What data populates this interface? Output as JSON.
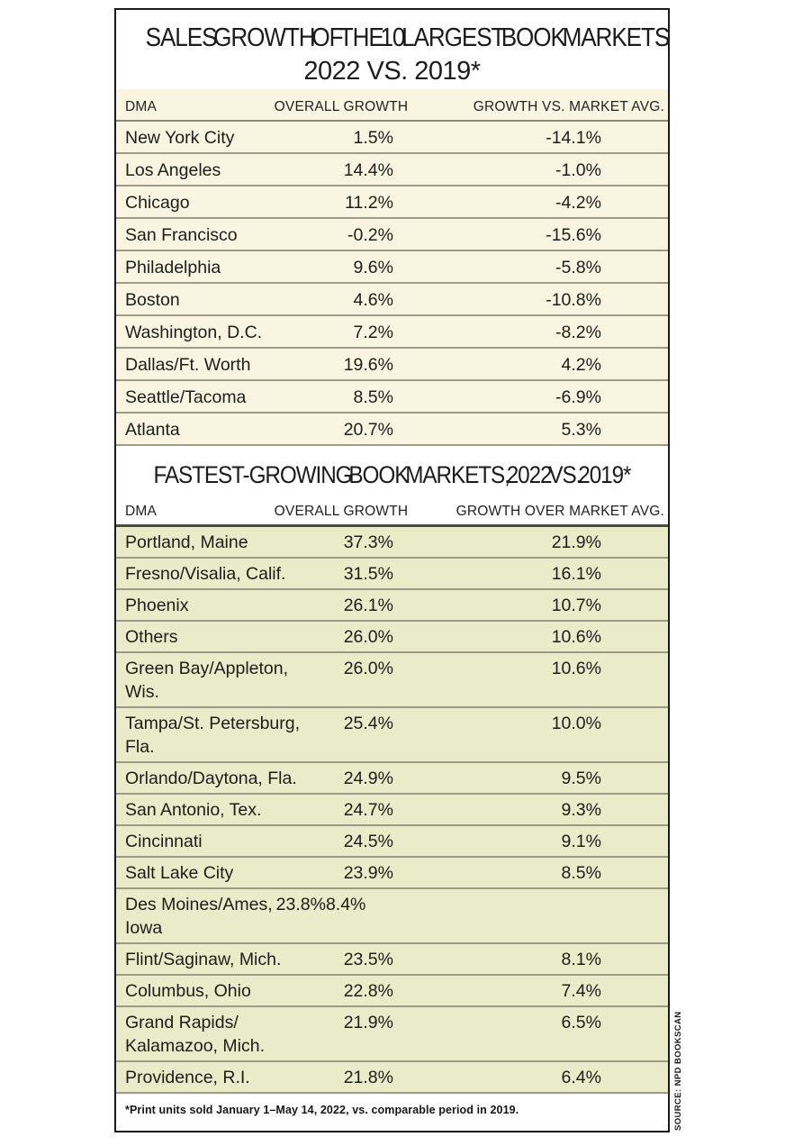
{
  "colors": {
    "table1_bg": "#f9f5e1",
    "table2_bg": "#e9ebc9",
    "row_divider": "#9c9b88",
    "table1_header_divider": "#8b8a7b",
    "table2_header_divider": "#4c4b40",
    "panel_border": "#1a1a1a",
    "text": "#1d1d1b"
  },
  "tables": [
    {
      "title_lines": [
        "SALES GROWTH OF THE 10 LARGEST BOOK MARKETS,",
        "2022 VS. 2019*"
      ],
      "columns": [
        "DMA",
        "OVERALL GROWTH",
        "GROWTH VS. MARKET AVG."
      ],
      "rows": [
        {
          "dma": "New York City",
          "overall": "1.5%",
          "vs": "-14.1%"
        },
        {
          "dma": "Los Angeles",
          "overall": "14.4%",
          "vs": "-1.0%"
        },
        {
          "dma": "Chicago",
          "overall": "11.2%",
          "vs": "-4.2%"
        },
        {
          "dma": "San Francisco",
          "overall": "-0.2%",
          "vs": "-15.6%"
        },
        {
          "dma": "Philadelphia",
          "overall": "9.6%",
          "vs": "-5.8%"
        },
        {
          "dma": "Boston",
          "overall": "4.6%",
          "vs": "-10.8%"
        },
        {
          "dma": "Washington, D.C.",
          "overall": "7.2%",
          "vs": "-8.2%"
        },
        {
          "dma": "Dallas/Ft. Worth",
          "overall": "19.6%",
          "vs": "4.2%"
        },
        {
          "dma": "Seattle/Tacoma",
          "overall": "8.5%",
          "vs": "-6.9%"
        },
        {
          "dma": "Atlanta",
          "overall": "20.7%",
          "vs": "5.3%"
        }
      ]
    },
    {
      "title": "FASTEST-GROWING BOOK MARKETS, 2022 VS. 2019*",
      "columns": [
        "DMA",
        "OVERALL GROWTH",
        "GROWTH OVER MARKET AVG."
      ],
      "rows": [
        {
          "dma": "Portland, Maine",
          "overall": "37.3%",
          "vs": "21.9%"
        },
        {
          "dma": "Fresno/Visalia, Calif.",
          "overall": "31.5%",
          "vs": "16.1%"
        },
        {
          "dma": "Phoenix",
          "overall": "26.1%",
          "vs": "10.7%"
        },
        {
          "dma": "Others",
          "overall": "26.0%",
          "vs": "10.6%"
        },
        {
          "dma": "Green Bay/Appleton, Wis.",
          "dma_display": "Green Bay/Appleton,\nWis.",
          "overall": "26.0%",
          "vs": "10.6%"
        },
        {
          "dma": "Tampa/St. Petersburg, Fla.",
          "dma_display": "Tampa/St. Petersburg,\nFla.",
          "overall": "25.4%",
          "vs": "10.0%"
        },
        {
          "dma": "Orlando/Daytona, Fla.",
          "overall": "24.9%",
          "vs": "9.5%"
        },
        {
          "dma": "San Antonio, Tex.",
          "overall": "24.7%",
          "vs": "9.3%"
        },
        {
          "dma": "Cincinnati",
          "overall": "24.5%",
          "vs": "9.1%"
        },
        {
          "dma": "Salt Lake City",
          "overall": "23.9%",
          "vs": "8.5%"
        },
        {
          "dma": "Des Moines/Ames, Iowa",
          "dma_display": "Des Moines/Ames,\nIowa",
          "overall": "23.8%",
          "vs": "8.4%",
          "collapsed": true
        },
        {
          "dma": "Flint/Saginaw, Mich.",
          "overall": "23.5%",
          "vs": "8.1%"
        },
        {
          "dma": "Columbus, Ohio",
          "overall": "22.8%",
          "vs": "7.4%"
        },
        {
          "dma": "Grand Rapids/Kalamazoo, Mich.",
          "dma_display": "Grand Rapids/\nKalamazoo, Mich.",
          "overall": "21.9%",
          "vs": "6.5%"
        },
        {
          "dma": "Providence, R.I.",
          "overall": "21.8%",
          "vs": "6.4%"
        }
      ]
    }
  ],
  "footnote": "*Print units sold January 1–May 14, 2022, vs. comparable period in 2019.",
  "source": "SOURCE: NPD BOOKSCAN",
  "chart_data": [
    {
      "type": "table",
      "title": "SALES GROWTH OF THE 10 LARGEST BOOK MARKETS, 2022 VS. 2019*",
      "columns": [
        "DMA",
        "OVERALL GROWTH",
        "GROWTH VS. MARKET AVG."
      ],
      "rows": [
        [
          "New York City",
          "1.5%",
          "-14.1%"
        ],
        [
          "Los Angeles",
          "14.4%",
          "-1.0%"
        ],
        [
          "Chicago",
          "11.2%",
          "-4.2%"
        ],
        [
          "San Francisco",
          "-0.2%",
          "-15.6%"
        ],
        [
          "Philadelphia",
          "9.6%",
          "-5.8%"
        ],
        [
          "Boston",
          "4.6%",
          "-10.8%"
        ],
        [
          "Washington, D.C.",
          "7.2%",
          "-8.2%"
        ],
        [
          "Dallas/Ft. Worth",
          "19.6%",
          "4.2%"
        ],
        [
          "Seattle/Tacoma",
          "8.5%",
          "-6.9%"
        ],
        [
          "Atlanta",
          "20.7%",
          "5.3%"
        ]
      ]
    },
    {
      "type": "table",
      "title": "FASTEST-GROWING BOOK MARKETS, 2022 VS. 2019*",
      "columns": [
        "DMA",
        "OVERALL GROWTH",
        "GROWTH OVER MARKET AVG."
      ],
      "rows": [
        [
          "Portland, Maine",
          "37.3%",
          "21.9%"
        ],
        [
          "Fresno/Visalia, Calif.",
          "31.5%",
          "16.1%"
        ],
        [
          "Phoenix",
          "26.1%",
          "10.7%"
        ],
        [
          "Others",
          "26.0%",
          "10.6%"
        ],
        [
          "Green Bay/Appleton, Wis.",
          "26.0%",
          "10.6%"
        ],
        [
          "Tampa/St. Petersburg, Fla.",
          "25.4%",
          "10.0%"
        ],
        [
          "Orlando/Daytona, Fla.",
          "24.9%",
          "9.5%"
        ],
        [
          "San Antonio, Tex.",
          "24.7%",
          "9.3%"
        ],
        [
          "Cincinnati",
          "24.5%",
          "9.1%"
        ],
        [
          "Salt Lake City",
          "23.9%",
          "8.5%"
        ],
        [
          "Des Moines/Ames, Iowa",
          "23.8%",
          "8.4%"
        ],
        [
          "Flint/Saginaw, Mich.",
          "23.5%",
          "8.1%"
        ],
        [
          "Columbus, Ohio",
          "22.8%",
          "7.4%"
        ],
        [
          "Grand Rapids/Kalamazoo, Mich.",
          "21.9%",
          "6.5%"
        ],
        [
          "Providence, R.I.",
          "21.8%",
          "6.4%"
        ]
      ]
    }
  ]
}
